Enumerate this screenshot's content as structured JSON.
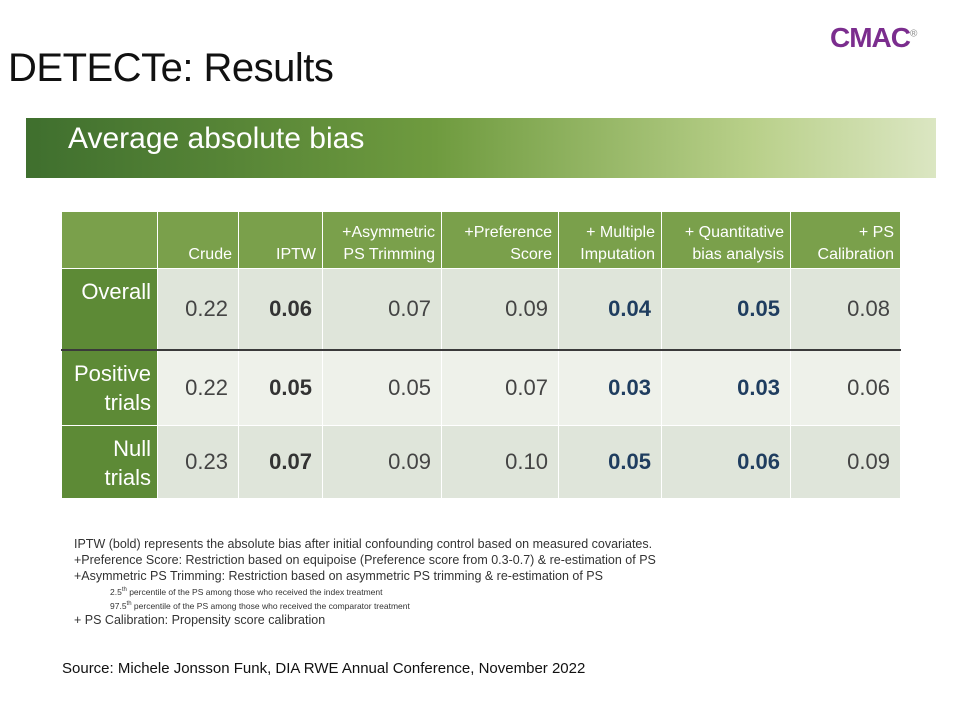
{
  "slide": {
    "title": "DETECTe: Results",
    "logo": "CMAC",
    "logo_mark": "®",
    "section_heading": "Average absolute bias"
  },
  "table": {
    "columns": [
      "",
      "Crude",
      "IPTW",
      "+Asymmetric PS Trimming",
      "+Preference Score",
      "+ Multiple Imputation",
      "+ Quantitative bias analysis",
      "+ PS Calibration"
    ],
    "column_lines": [
      [
        ""
      ],
      [
        "Crude"
      ],
      [
        "IPTW"
      ],
      [
        "+Asymmetric",
        "PS Trimming"
      ],
      [
        "+Preference",
        "Score"
      ],
      [
        "+ Multiple",
        "Imputation"
      ],
      [
        "+ Quantitative",
        "bias analysis"
      ],
      [
        "+ PS",
        "Calibration"
      ]
    ],
    "rows": [
      {
        "label_lines": [
          "Overall"
        ],
        "values": [
          "0.22",
          "0.06",
          "0.07",
          "0.09",
          "0.04",
          "0.05",
          "0.08"
        ]
      },
      {
        "label_lines": [
          "Positive",
          "trials"
        ],
        "values": [
          "0.22",
          "0.05",
          "0.05",
          "0.07",
          "0.03",
          "0.03",
          "0.06"
        ]
      },
      {
        "label_lines": [
          "Null",
          "trials"
        ],
        "values": [
          "0.23",
          "0.07",
          "0.09",
          "0.10",
          "0.05",
          "0.06",
          "0.09"
        ]
      }
    ]
  },
  "notes": {
    "line1": "IPTW (bold) represents the absolute bias after initial confounding control based on measured covariates.",
    "line2": "+Preference Score: Restriction based on equipoise (Preference score from 0.3-0.7) & re-estimation of PS",
    "line3": "+Asymmetric PS Trimming: Restriction based on asymmetric PS trimming & re-estimation of PS",
    "sub1_num": "2.5",
    "sub1_sup": "th",
    "sub1_text": " percentile of the PS among those who received the index treatment",
    "sub2_num": "97.5",
    "sub2_sup": "th",
    "sub2_text": " percentile of the PS among those who received the comparator treatment",
    "line4": "+ PS Calibration: Propensity score calibration"
  },
  "source": "Source: Michele Jonsson Funk, DIA RWE Annual Conference, November 2022",
  "colors": {
    "header_green": "#7aa04b",
    "row_label_green": "#5d8a36",
    "highlight_blue": "#1f3d5f",
    "logo_purple": "#7b2d8e"
  }
}
